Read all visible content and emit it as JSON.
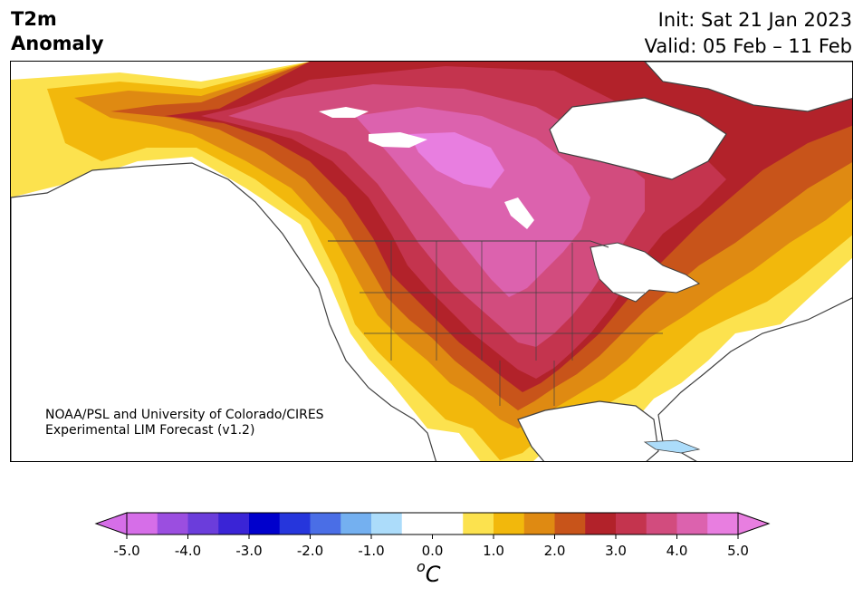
{
  "header": {
    "title_line1": "T2m",
    "title_line2": "Anomaly",
    "init": "Init: Sat 21 Jan 2023",
    "valid": "Valid: 05 Feb – 11 Feb"
  },
  "map": {
    "credit_line1": "NOAA/PSL and University of Colorado/CIRES",
    "credit_line2": "Experimental LIM Forecast (v1.2)"
  },
  "colorbar": {
    "unit_base": "C",
    "unit_sup": "o",
    "ticks": [
      "-5.0",
      "-4.0",
      "-3.0",
      "-2.0",
      "-1.0",
      "0.0",
      "1.0",
      "2.0",
      "3.0",
      "4.0",
      "5.0"
    ],
    "colors": [
      "#d66ee8",
      "#9b4ee0",
      "#6b3ddb",
      "#3a24d6",
      "#0000cc",
      "#2636dc",
      "#4a6ee6",
      "#74b0f0",
      "#acdcfa",
      "#ffffff",
      "#ffffff",
      "#fce24e",
      "#f2b80c",
      "#df8a12",
      "#c8541a",
      "#b2222a",
      "#c4344e",
      "#d24c7e",
      "#dc62ae",
      "#e87ee0"
    ],
    "under_color": "#d66ee8",
    "over_color": "#e87ee0"
  },
  "colors": {
    "ocean": "#ffffff",
    "coast": "#404040"
  }
}
